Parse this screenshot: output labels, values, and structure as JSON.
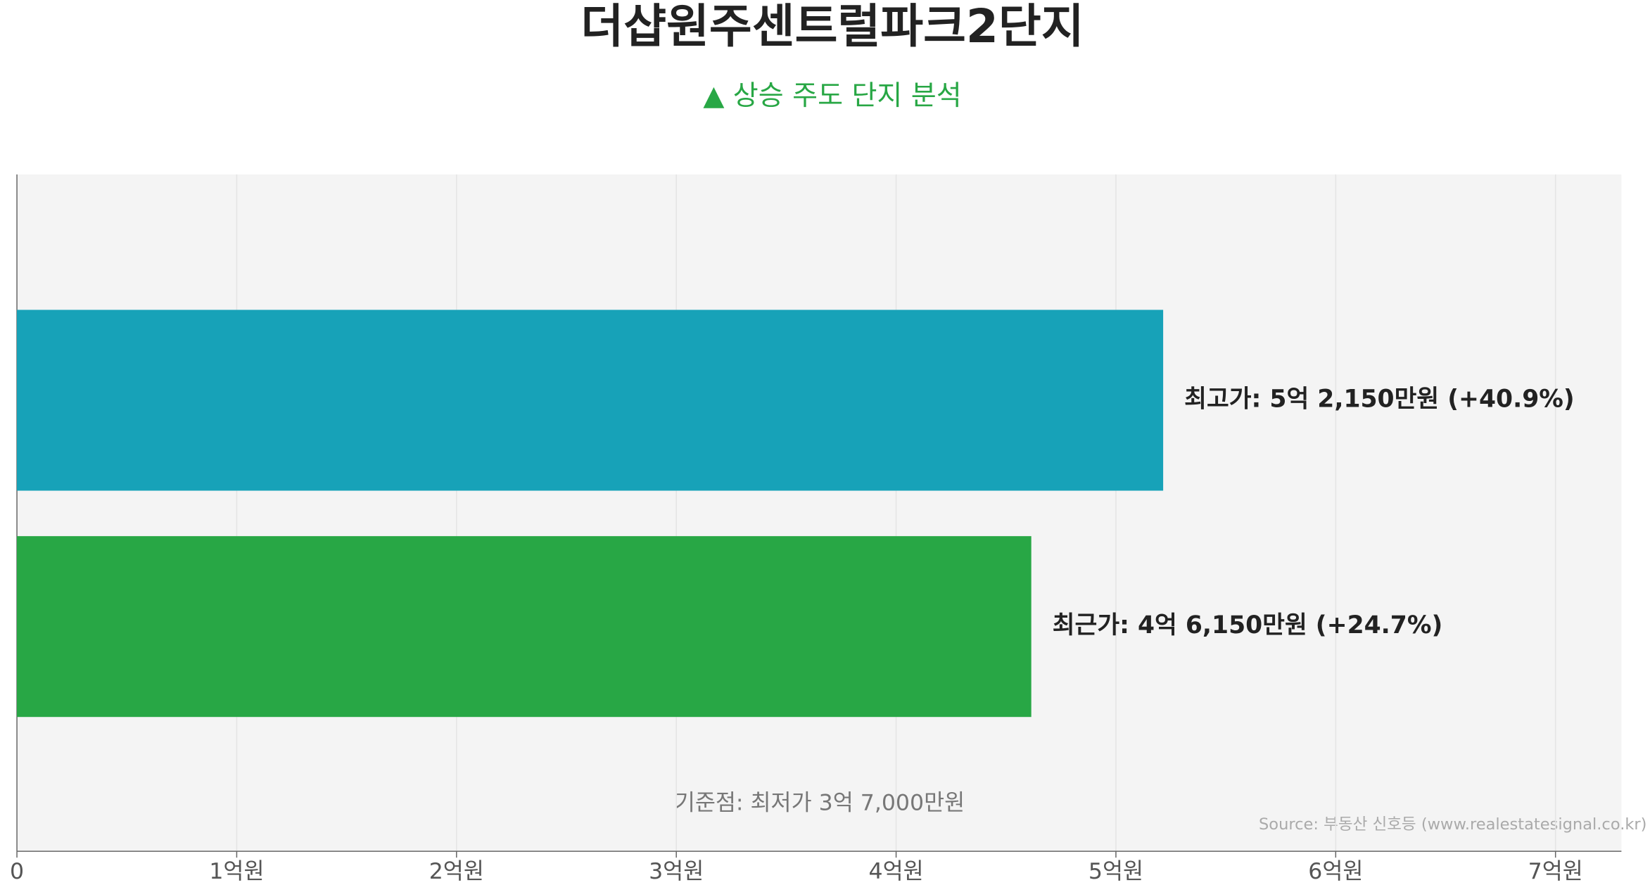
{
  "chart_data": {
    "type": "barh",
    "title": "더샵원주센트럴파크2단지",
    "subtitle": "▲ 상승 주도 단지 분석",
    "values": [
      5.215,
      4.615
    ],
    "value_labels": [
      "최고가: 5억 2,150만원 (+40.9%)",
      "최근가: 4억 6,150만원 (+24.7%)"
    ],
    "colors": [
      "#17a2b8",
      "#28a745"
    ],
    "xlim": [
      0,
      7.3
    ],
    "xticks": [
      0,
      {
        "value": 1,
        "label": "1억원"
      },
      {
        "value": 2,
        "label": "2억원"
      },
      {
        "value": 3,
        "label": "3억원"
      },
      {
        "value": 4,
        "label": "4억원"
      },
      {
        "value": 5,
        "label": "5억원"
      },
      {
        "value": 6,
        "label": "6억원"
      },
      {
        "value": 7,
        "label": "7억원"
      }
    ],
    "grid": true,
    "annotation": "기준점: 최저가 3억 7,000만원",
    "source": "Source: 부동산 신호등 (www.realestatesignal.co.kr)"
  }
}
